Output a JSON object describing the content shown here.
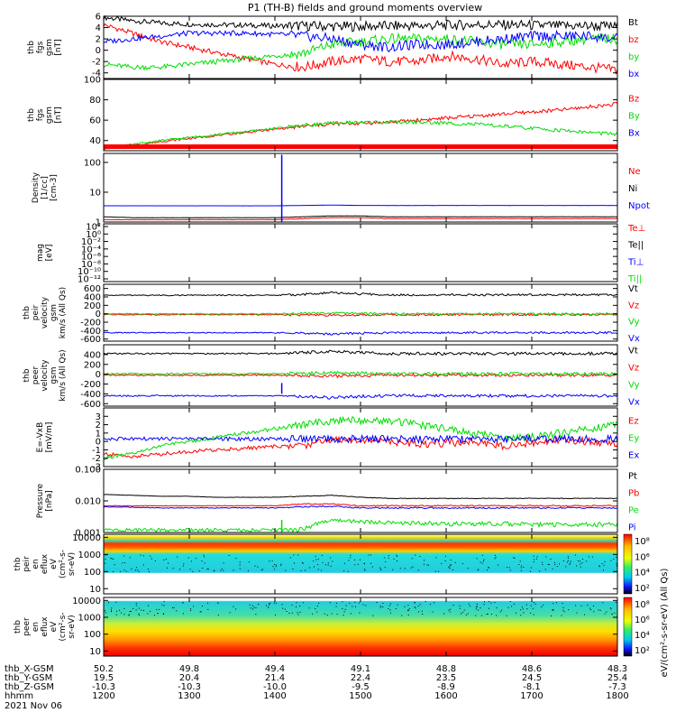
{
  "title": "P1 (TH-B) fields and ground moments overview",
  "colors": {
    "black": "#000000",
    "red": "#ff0000",
    "green": "#00dd00",
    "blue": "#0000ff"
  },
  "chart_data": [
    {
      "type": "line",
      "id": "p1",
      "ylabel": [
        "thb",
        "fgs",
        "gsm",
        "[nT]"
      ],
      "ylim": [
        -5,
        6
      ],
      "yticks": [
        6,
        4,
        2,
        0,
        -2,
        -4
      ],
      "series": [
        {
          "name": "Bt",
          "color": "#000000",
          "values": [
            5.8,
            5.2,
            4.8,
            4.6,
            4.5,
            4.4,
            4.3,
            4.3,
            4.2,
            4.2,
            4.3,
            4.3,
            4.4,
            4.5,
            4.5,
            4.4,
            4.3,
            4.3,
            4.2
          ]
        },
        {
          "name": "bz",
          "color": "#ff0000",
          "values": [
            4.5,
            3.0,
            1.5,
            0.5,
            -0.5,
            -1.5,
            -2.5,
            -3.0,
            -2.0,
            -1.5,
            -2.0,
            -2.0,
            -1.0,
            -1.5,
            -2.5,
            -2.0,
            -2.5,
            -3.0,
            -3.5
          ]
        },
        {
          "name": "by",
          "color": "#00dd00",
          "values": [
            -2.5,
            -3.0,
            -3.0,
            -2.5,
            -2.0,
            -1.5,
            -1.0,
            -0.5,
            1.0,
            1.5,
            2.0,
            2.0,
            2.0,
            1.5,
            1.0,
            1.0,
            1.5,
            2.0,
            2.0
          ]
        },
        {
          "name": "bx",
          "color": "#0000ff",
          "values": [
            1.5,
            2.0,
            2.5,
            3.0,
            3.0,
            3.0,
            2.8,
            2.5,
            2.0,
            1.0,
            0.5,
            1.0,
            1.0,
            1.5,
            2.0,
            2.5,
            2.5,
            2.5,
            2.0
          ]
        }
      ]
    },
    {
      "type": "line",
      "id": "p2",
      "ylabel": [
        "thb",
        "fgs",
        "gsm",
        "[nT]"
      ],
      "ylim": [
        30,
        100
      ],
      "yticks": [
        100,
        80,
        60,
        40
      ],
      "series": [
        {
          "name": "Bz",
          "color": "#ff0000",
          "values": [
            32,
            35,
            39,
            42,
            45,
            48,
            51,
            54,
            56,
            57,
            58,
            60,
            62,
            64,
            66,
            68,
            70,
            73,
            76
          ]
        },
        {
          "name": "By",
          "color": "#00dd00",
          "values": [
            32,
            36,
            40,
            43,
            46,
            49,
            52,
            55,
            57,
            58,
            58,
            58,
            57,
            56,
            54,
            52,
            50,
            48,
            46
          ]
        },
        {
          "name": "Bx",
          "color": "#0000ff",
          "values": []
        }
      ]
    },
    {
      "type": "line",
      "id": "p3",
      "ylabel": [
        "Density",
        "[1/cc]",
        "[cm-3]"
      ],
      "scale": "log",
      "ylim": [
        1,
        200
      ],
      "yticks": [
        100,
        10,
        1
      ],
      "series": [
        {
          "name": "Ne",
          "color": "#ff0000",
          "values": [
            1.2,
            1.2,
            1.2,
            1.2,
            1.2,
            1.2,
            1.2,
            1.3,
            1.4,
            1.4,
            1.3,
            1.3,
            1.3,
            1.3,
            1.3,
            1.3,
            1.3,
            1.3,
            1.3
          ]
        },
        {
          "name": "Ni",
          "color": "#000000",
          "values": [
            1.5,
            1.4,
            1.4,
            1.4,
            1.4,
            1.4,
            1.4,
            1.5,
            1.6,
            1.6,
            1.5,
            1.5,
            1.5,
            1.5,
            1.5,
            1.5,
            1.5,
            1.5,
            1.5
          ]
        },
        {
          "name": "Npot",
          "color": "#0000ff",
          "values": [
            3.5,
            3.5,
            3.5,
            3.5,
            3.5,
            3.5,
            3.5,
            3.6,
            3.7,
            3.6,
            3.6,
            3.6,
            3.6,
            3.6,
            3.6,
            3.6,
            3.6,
            3.6,
            3.6
          ]
        }
      ]
    },
    {
      "type": "line",
      "id": "p4",
      "ylabel": [
        "mag",
        "[eV]"
      ],
      "yticks": [
        "10²",
        "10⁰",
        "10⁻²",
        "10⁻⁴",
        "10⁻⁶",
        "10⁻⁸",
        "10⁻¹⁰",
        "10⁻¹²"
      ],
      "series": [
        {
          "name": "Te⊥",
          "color": "#ff0000",
          "values": []
        },
        {
          "name": "Te||",
          "color": "#000000",
          "values": []
        },
        {
          "name": "Ti⊥",
          "color": "#0000ff",
          "values": []
        },
        {
          "name": "Ti||",
          "color": "#00dd00",
          "values": []
        }
      ]
    },
    {
      "type": "line",
      "id": "p5",
      "ylabel": [
        "thb",
        "peir",
        "velocity",
        "gsm",
        "km/s (All Qs)"
      ],
      "ylim": [
        -650,
        700
      ],
      "yticks": [
        600,
        400,
        200,
        0,
        -200,
        -400,
        -600
      ],
      "series": [
        {
          "name": "Vt",
          "color": "#000000",
          "values": [
            440,
            440,
            440,
            440,
            440,
            440,
            440,
            460,
            500,
            470,
            450,
            450,
            450,
            450,
            450,
            450,
            450,
            450,
            450
          ]
        },
        {
          "name": "Vz",
          "color": "#ff0000",
          "values": [
            -20,
            -20,
            -20,
            -20,
            -20,
            -20,
            -20,
            -30,
            -40,
            -30,
            -20,
            -20,
            -20,
            -20,
            -20,
            -20,
            -20,
            -20,
            -20
          ]
        },
        {
          "name": "Vy",
          "color": "#00dd00",
          "values": [
            0,
            0,
            0,
            0,
            0,
            0,
            0,
            10,
            20,
            10,
            0,
            0,
            0,
            0,
            0,
            0,
            0,
            0,
            0
          ]
        },
        {
          "name": "Vx",
          "color": "#0000ff",
          "values": [
            -450,
            -450,
            -450,
            -450,
            -450,
            -450,
            -450,
            -460,
            -480,
            -460,
            -450,
            -450,
            -450,
            -450,
            -450,
            -450,
            -450,
            -450,
            -450
          ]
        }
      ]
    },
    {
      "type": "line",
      "id": "p6",
      "ylabel": [
        "thb",
        "peer",
        "velocity",
        "gsm",
        "km/s (All Qs)"
      ],
      "ylim": [
        -650,
        600
      ],
      "yticks": [
        400,
        200,
        0,
        -200,
        -400,
        -600
      ],
      "series": [
        {
          "name": "Vt",
          "color": "#000000",
          "values": [
            420,
            420,
            420,
            420,
            420,
            420,
            420,
            440,
            470,
            440,
            420,
            420,
            420,
            420,
            420,
            420,
            420,
            420,
            420
          ]
        },
        {
          "name": "Vz",
          "color": "#ff0000",
          "values": [
            -20,
            -20,
            -20,
            -20,
            -20,
            -20,
            -20,
            -30,
            -40,
            -30,
            -20,
            -20,
            -20,
            -20,
            -20,
            -20,
            -20,
            -20,
            -20
          ]
        },
        {
          "name": "Vy",
          "color": "#00dd00",
          "values": [
            10,
            10,
            10,
            10,
            10,
            10,
            10,
            20,
            30,
            20,
            10,
            10,
            10,
            10,
            10,
            10,
            10,
            10,
            10
          ]
        },
        {
          "name": "Vx",
          "color": "#0000ff",
          "values": [
            -440,
            -440,
            -440,
            -440,
            -440,
            -440,
            -440,
            -450,
            -480,
            -450,
            -440,
            -440,
            -440,
            -440,
            -440,
            -440,
            -440,
            -440,
            -440
          ]
        }
      ]
    },
    {
      "type": "line",
      "id": "p7",
      "ylabel": [
        "E=-VxB",
        "[mV/m]"
      ],
      "ylim": [
        -3,
        4
      ],
      "yticks": [
        3,
        2,
        1,
        0,
        -1,
        -2,
        -3
      ],
      "series": [
        {
          "name": "Ez",
          "color": "#ff0000",
          "values": [
            -1.5,
            -1.8,
            -1.5,
            -1.2,
            -1.0,
            -0.8,
            -0.6,
            -0.5,
            0.3,
            0.2,
            0.0,
            -0.3,
            -0.2,
            0.0,
            -0.5,
            -0.2,
            0.2,
            0.0,
            -0.3
          ]
        },
        {
          "name": "Ey",
          "color": "#00dd00",
          "values": [
            -2.0,
            -1.5,
            -0.5,
            0.0,
            0.5,
            1.0,
            1.5,
            2.0,
            2.5,
            2.5,
            2.5,
            2.0,
            1.5,
            1.0,
            0.5,
            0.5,
            1.0,
            1.5,
            2.0
          ]
        },
        {
          "name": "Ex",
          "color": "#0000ff",
          "values": [
            0.3,
            0.3,
            0.3,
            0.3,
            0.3,
            0.3,
            0.3,
            0.3,
            0.3,
            0.3,
            0.3,
            0.3,
            0.3,
            0.3,
            0.3,
            0.3,
            0.3,
            0.3,
            0.3
          ]
        }
      ]
    },
    {
      "type": "line",
      "id": "p8",
      "ylabel": [
        "Pressure",
        "[nPa]"
      ],
      "scale": "log",
      "ylim": [
        0.001,
        0.1
      ],
      "yticks": [
        "0.100",
        "0.010",
        "0.001"
      ],
      "series": [
        {
          "name": "Pt",
          "color": "#000000",
          "values": [
            0.016,
            0.015,
            0.014,
            0.014,
            0.013,
            0.013,
            0.013,
            0.014,
            0.015,
            0.013,
            0.012,
            0.012,
            0.012,
            0.012,
            0.012,
            0.012,
            0.012,
            0.012,
            0.012
          ]
        },
        {
          "name": "Pb",
          "color": "#ff0000",
          "values": [
            0.007,
            0.007,
            0.007,
            0.007,
            0.007,
            0.007,
            0.007,
            0.008,
            0.008,
            0.007,
            0.007,
            0.007,
            0.007,
            0.007,
            0.007,
            0.007,
            0.007,
            0.007,
            0.007
          ]
        },
        {
          "name": "Pe",
          "color": "#00dd00",
          "values": [
            0.0012,
            0.0012,
            0.0012,
            0.0012,
            0.0012,
            0.0012,
            0.0012,
            0.0012,
            0.0025,
            0.0022,
            0.002,
            0.002,
            0.0019,
            0.0019,
            0.0019,
            0.0018,
            0.0018,
            0.0018,
            0.0018
          ]
        },
        {
          "name": "Pi",
          "color": "#0000ff",
          "values": [
            0.0065,
            0.0063,
            0.006,
            0.006,
            0.006,
            0.006,
            0.006,
            0.0065,
            0.0068,
            0.006,
            0.006,
            0.006,
            0.006,
            0.006,
            0.006,
            0.006,
            0.006,
            0.006,
            0.006
          ]
        }
      ]
    },
    {
      "type": "heatmap",
      "id": "p9",
      "ylabel": [
        "thb",
        "peir",
        "en",
        "eflux",
        "eV",
        "(cm²-s-",
        "sr-eV)"
      ],
      "ylim": [
        5,
        15000
      ],
      "yticks": [
        "10000",
        "1000",
        "100",
        "10"
      ],
      "colorbar": {
        "label": "eV/(cm²-s-sr-eV) (All Qs)",
        "ticks": [
          "10⁸",
          "10⁶",
          "10⁴",
          "10²"
        ]
      }
    },
    {
      "type": "heatmap",
      "id": "p10",
      "ylabel": [
        "thb",
        "peer",
        "en",
        "eflux",
        "eV",
        "(cm²-s-",
        "sr-eV)"
      ],
      "ylim": [
        5,
        15000
      ],
      "yticks": [
        "10000",
        "1000",
        "100",
        "10"
      ],
      "colorbar": {
        "label": "eV/(cm²-s-sr-eV)",
        "ticks": [
          "10⁸",
          "10⁶",
          "10⁴",
          "10²"
        ]
      }
    }
  ],
  "x_axis": {
    "rows": [
      {
        "label": "thb_X-GSM",
        "values": [
          "50.2",
          "49.8",
          "49.4",
          "49.1",
          "48.8",
          "48.6",
          "48.3"
        ]
      },
      {
        "label": "thb_Y-GSM",
        "values": [
          "19.5",
          "20.4",
          "21.4",
          "22.4",
          "23.5",
          "24.5",
          "25.4"
        ]
      },
      {
        "label": "thb_Z-GSM",
        "values": [
          "-10.3",
          "-10.3",
          "-10.0",
          "-9.5",
          "-8.9",
          "-8.1",
          "-7.3"
        ]
      },
      {
        "label": "hhmm",
        "values": [
          "1200",
          "1300",
          "1400",
          "1500",
          "1600",
          "1700",
          "1800"
        ]
      }
    ],
    "date": "2021 Nov 06"
  }
}
